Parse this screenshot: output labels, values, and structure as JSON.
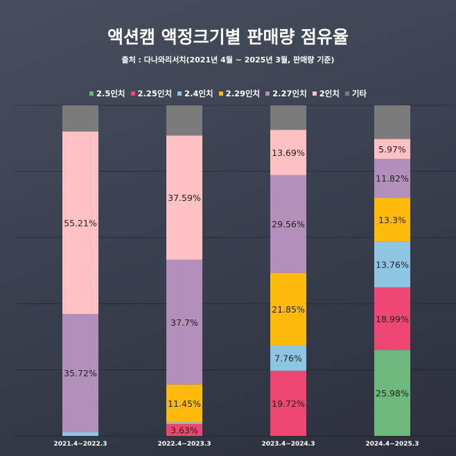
{
  "chart_data": {
    "type": "bar",
    "stacked": true,
    "percent": true,
    "title": "액션캠 액정크기별 판매량 점유율",
    "subtitle": "출처 : 다나와리서치(2021년 4월 ~ 2025년 3월, 판매량 기준)",
    "categories": [
      "2021.4~2022.3",
      "2022.4~2023.3",
      "2023.4~2024.3",
      "2024.4~2025.3"
    ],
    "ylim": [
      0,
      100
    ],
    "grid": true,
    "legend_position": "top",
    "series": [
      {
        "name": "2.5인치",
        "color": "#6db87c",
        "values": [
          0,
          0,
          0,
          25.98
        ],
        "labels": [
          "",
          "",
          "",
          "25.98%"
        ]
      },
      {
        "name": "2.25인치",
        "color": "#ee4672",
        "values": [
          0,
          3.63,
          19.72,
          18.99
        ],
        "labels": [
          "",
          "3.63%",
          "19.72%",
          "18.99%"
        ]
      },
      {
        "name": "2.4인치",
        "color": "#8ec5e2",
        "values": [
          1.17,
          0.5,
          7.76,
          13.76
        ],
        "labels": [
          "",
          "",
          "7.76%",
          "13.76%"
        ]
      },
      {
        "name": "2.29인치",
        "color": "#ffba0c",
        "values": [
          0,
          11.45,
          21.85,
          13.3
        ],
        "labels": [
          "",
          "11.45%",
          "21.85%",
          "13.3%"
        ]
      },
      {
        "name": "2.27인치",
        "color": "#b38fbc",
        "values": [
          35.72,
          37.7,
          29.56,
          11.82
        ],
        "labels": [
          "35.72%",
          "37.7%",
          "29.56%",
          "11.82%"
        ]
      },
      {
        "name": "2인치",
        "color": "#ffc1c3",
        "values": [
          55.21,
          37.59,
          13.69,
          5.97
        ],
        "labels": [
          "55.21%",
          "37.59%",
          "13.69%",
          "5.97%"
        ]
      },
      {
        "name": "기타",
        "color": "#7b7b7b",
        "values": [
          7.9,
          9.13,
          7.42,
          10.18
        ],
        "labels": [
          "",
          "",
          "",
          ""
        ]
      }
    ]
  }
}
